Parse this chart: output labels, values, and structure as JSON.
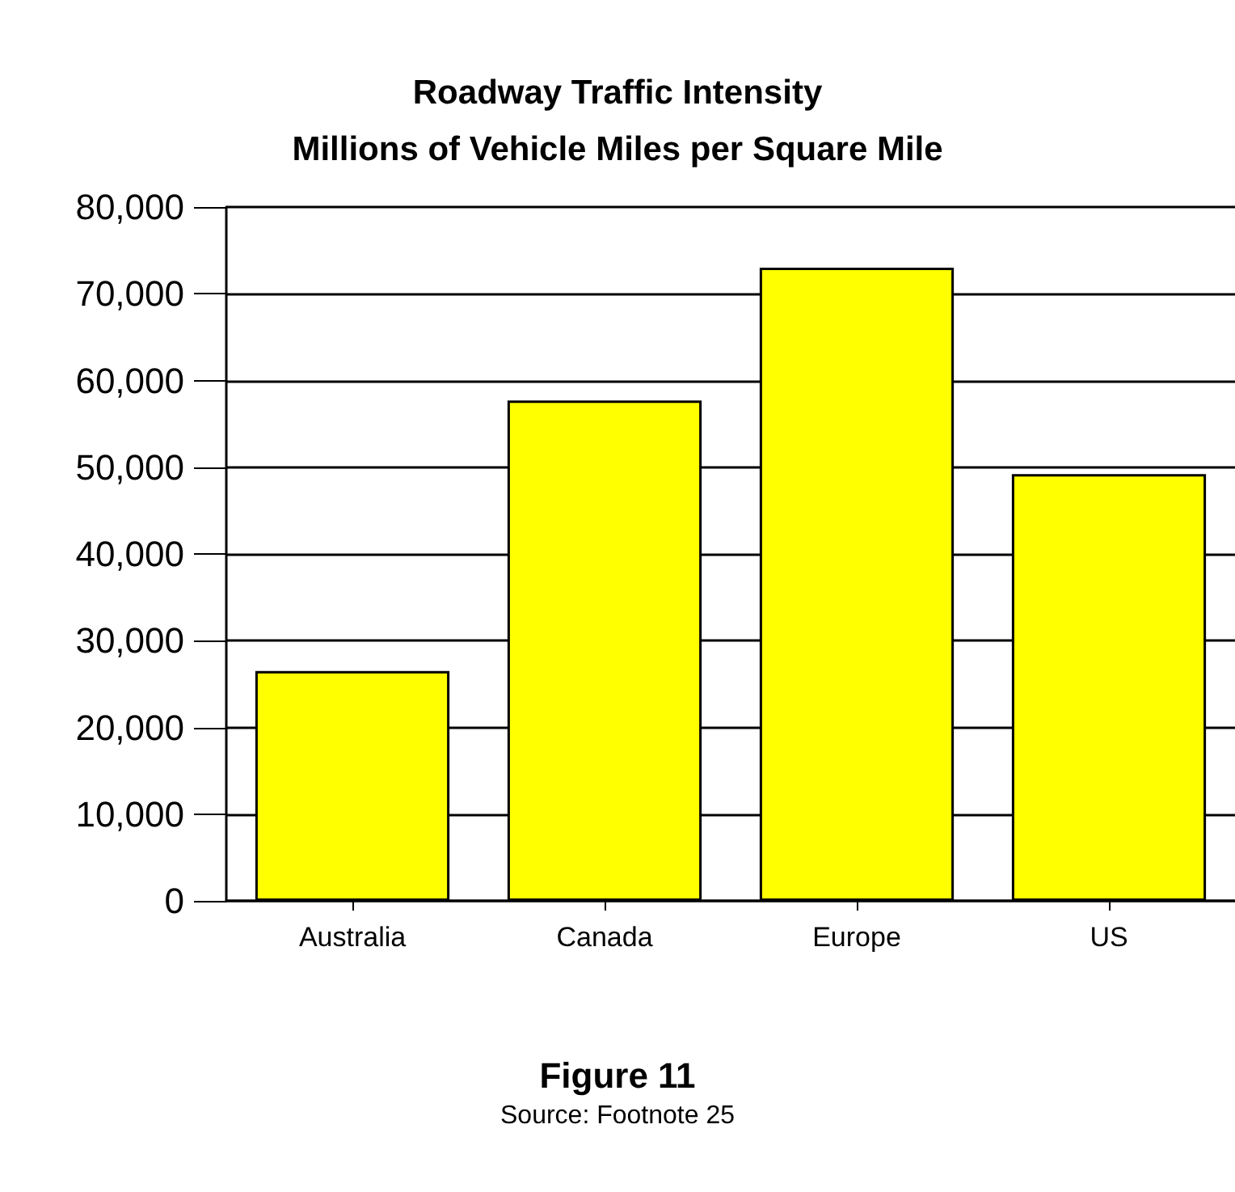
{
  "chart_data": {
    "type": "bar",
    "title": "Roadway Traffic Intensity",
    "subtitle": "Millions of Vehicle Miles per Square Mile",
    "categories": [
      "Australia",
      "Canada",
      "Europe",
      "US"
    ],
    "values": [
      26500,
      57700,
      73000,
      49200
    ],
    "color": "#ffff00",
    "ylim": [
      0,
      80000
    ],
    "yticks": [
      0,
      {
        "value": 10000,
        "label": "10,000"
      },
      {
        "value": 20000,
        "label": "20,000"
      },
      {
        "value": 30000,
        "label": "30,000"
      },
      {
        "value": 40000,
        "label": "40,000"
      },
      {
        "value": 50000,
        "label": "50,000"
      },
      {
        "value": 60000,
        "label": "60,000"
      },
      {
        "value": 70000,
        "label": "70,000"
      },
      {
        "value": 80000,
        "label": "80,000"
      }
    ],
    "grid": "y",
    "annotations": [
      "Figure 11",
      "Source: Footnote 25"
    ]
  }
}
